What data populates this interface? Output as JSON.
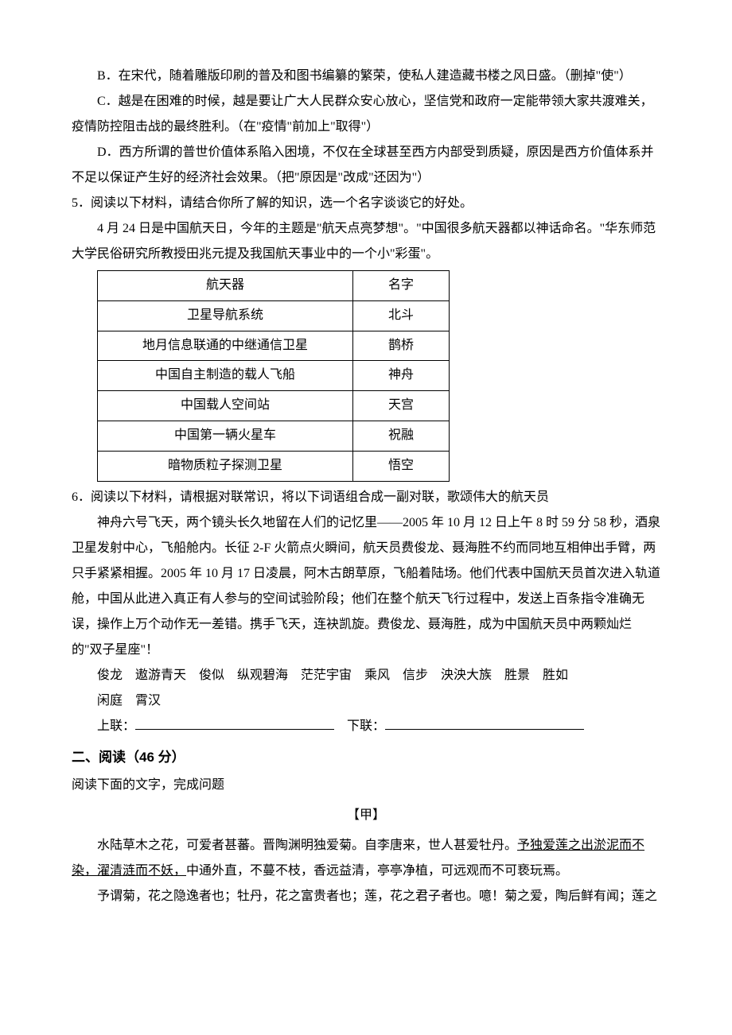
{
  "option_b": "B．在宋代，随着雕版印刷的普及和图书编纂的繁荣，使私人建造藏书楼之风日盛。（删掉\"使\"）",
  "option_c": "C．越是在困难的时候，越是要让广大人民群众安心放心，坚信党和政府一定能带领大家共渡难关，疫情防控阻击战的最终胜利。（在\"疫情\"前加上\"取得\"）",
  "option_d": "D．西方所谓的普世价值体系陷入困境，不仅在全球甚至西方内部受到质疑，原因是西方价值体系并不足以保证产生好的经济社会效果。（把\"原因是\"改成\"还因为\"）",
  "q5": {
    "stem": "5．阅读以下材料，请结合你所了解的知识，选一个名字谈谈它的好处。",
    "intro": "4 月 24 日是中国航天日，今年的主题是\"航天点亮梦想\"。\"中国很多航天器都以神话命名。\"华东师范大学民俗研究所教授田兆元提及我国航天事业中的一个小\"彩蛋\"。",
    "table": {
      "header": [
        "航天器",
        "名字"
      ],
      "rows": [
        [
          "卫星导航系统",
          "北斗"
        ],
        [
          "地月信息联通的中继通信卫星",
          "鹊桥"
        ],
        [
          "中国自主制造的载人飞船",
          "神舟"
        ],
        [
          "中国载人空间站",
          "天宫"
        ],
        [
          "中国第一辆火星车",
          "祝融"
        ],
        [
          "暗物质粒子探测卫星",
          "悟空"
        ]
      ]
    }
  },
  "q6": {
    "stem": "6．阅读以下材料，请根据对联常识，将以下词语组合成一副对联，歌颂伟大的航天员",
    "body": "神舟六号飞天，两个镜头长久地留在人们的记忆里——2005 年 10 月 12 日上午 8 时 59 分 58 秒，酒泉卫星发射中心，飞船舱内。长征 2-F 火箭点火瞬间，航天员费俊龙、聂海胜不约而同地互相伸出手臂，两只手紧紧相握。2005 年 10 月 17 日凌晨，阿木古朗草原，飞船着陆场。他们代表中国航天员首次进入轨道舱，中国从此进入真正有人参与的空间试验阶段；他们在整个航天飞行过程中，发送上百条指令准确无误，操作上万个动作无一差错。携手飞天，连袂凯旋。费俊龙、聂海胜，成为中国航天员中两颗灿烂的\"双子星座\"！",
    "words1": "俊龙　遨游青天　俊似　纵观碧海　茫茫宇宙　乘风　信步　泱泱大族　胜景　胜如",
    "words2": "闲庭　霄汉",
    "upper_label": "上联：",
    "lower_label": "下联："
  },
  "reading_section": {
    "title": "二、阅读（46 分）",
    "instr": "阅读下面的文字，完成问题",
    "jia": "【甲】",
    "p1_a": "水陆草木之花，可爱者甚蕃。晋陶渊明独爱菊。自李唐来，世人甚爱牡丹。",
    "p1_u": "予独爱莲之出淤泥而不染，濯清涟而不妖，",
    "p1_c": "中通外直，不蔓不枝，香远益清，亭亭净植，可远观而不可亵玩焉。",
    "p2": "予谓菊，花之隐逸者也；牡丹，花之富贵者也；莲，花之君子者也。噫！菊之爱，陶后鲜有闻；莲之"
  }
}
